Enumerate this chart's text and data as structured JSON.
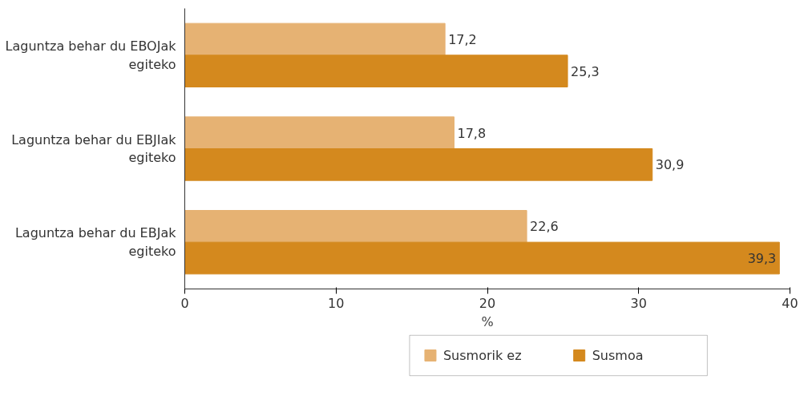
{
  "chart_data": {
    "type": "bar",
    "orientation": "horizontal",
    "categories": [
      "Laguntza behar du EBOJak egiteko",
      "Laguntza behar du EBJIak egiteko",
      "Laguntza behar du EBJak egiteko"
    ],
    "series": [
      {
        "name": "Susmorik ez",
        "color": "#e6b273",
        "values": [
          17.2,
          17.8,
          22.6
        ],
        "value_labels": [
          "17,2",
          "17,8",
          "22,6"
        ]
      },
      {
        "name": "Susmoa",
        "color": "#d4891e",
        "values": [
          25.3,
          30.9,
          39.3
        ],
        "value_labels": [
          "25,3",
          "30,9",
          "39,3"
        ]
      }
    ],
    "xlim": [
      0,
      40
    ],
    "xticks": [
      0,
      10,
      20,
      30,
      40
    ],
    "xlabel": "%",
    "grid": false,
    "legend": "bottom"
  }
}
